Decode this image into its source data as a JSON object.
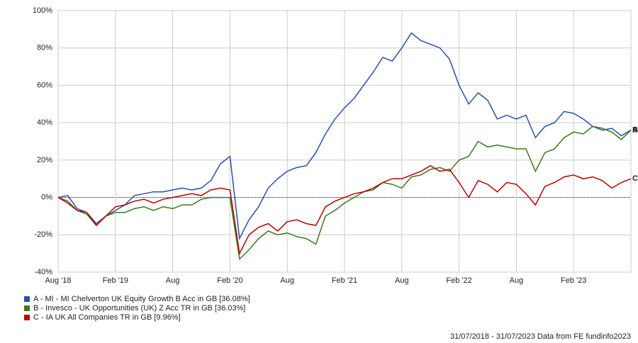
{
  "chart_data": {
    "type": "line",
    "x": [
      "2018-08",
      "2018-09",
      "2018-10",
      "2018-11",
      "2018-12",
      "2019-01",
      "2019-02",
      "2019-03",
      "2019-04",
      "2019-05",
      "2019-06",
      "2019-07",
      "2019-08",
      "2019-09",
      "2019-10",
      "2019-11",
      "2019-12",
      "2020-01",
      "2020-02",
      "2020-03",
      "2020-04",
      "2020-05",
      "2020-06",
      "2020-07",
      "2020-08",
      "2020-09",
      "2020-10",
      "2020-11",
      "2020-12",
      "2021-01",
      "2021-02",
      "2021-03",
      "2021-04",
      "2021-05",
      "2021-06",
      "2021-07",
      "2021-08",
      "2021-09",
      "2021-10",
      "2021-11",
      "2021-12",
      "2022-01",
      "2022-02",
      "2022-03",
      "2022-04",
      "2022-05",
      "2022-06",
      "2022-07",
      "2022-08",
      "2022-09",
      "2022-10",
      "2022-11",
      "2022-12",
      "2023-01",
      "2023-02",
      "2023-03",
      "2023-04",
      "2023-05",
      "2023-06",
      "2023-07",
      "2023-08"
    ],
    "series": [
      {
        "name": "A - MI - MI Chelverton UK Equity Growth B Acc in GB [36.08%]",
        "tag": "A",
        "color": "#2a50a8",
        "values": [
          0,
          1,
          -6,
          -8,
          -14,
          -10,
          -7,
          -4,
          1,
          2,
          3,
          3,
          4,
          5,
          4,
          5,
          9,
          18,
          22,
          -22,
          -12,
          -5,
          5,
          10,
          14,
          16,
          17,
          24,
          34,
          42,
          48,
          53,
          60,
          67,
          75,
          73,
          80,
          88,
          84,
          82,
          80,
          74,
          60,
          50,
          56,
          52,
          42,
          44,
          42,
          44,
          32,
          38,
          40,
          46,
          45,
          42,
          38,
          36,
          37,
          33,
          36.08
        ]
      },
      {
        "name": "B - Invesco - UK Opportunities (UK) Z Acc TR in GB [36.03%]",
        "tag": "B",
        "color": "#3a7a1e",
        "values": [
          0,
          -2,
          -7,
          -9,
          -15,
          -10,
          -8,
          -8,
          -6,
          -5,
          -7,
          -5,
          -6,
          -4,
          -4,
          -1,
          0,
          0,
          0,
          -33,
          -28,
          -22,
          -18,
          -20,
          -19,
          -21,
          -22,
          -25,
          -10,
          -7,
          -3,
          0,
          3,
          4,
          8,
          7,
          5,
          11,
          12,
          15,
          16,
          14,
          20,
          22,
          30,
          27,
          28,
          27,
          26,
          26,
          14,
          24,
          26,
          32,
          35,
          34,
          38,
          37,
          35,
          31,
          36.03
        ]
      },
      {
        "name": "C - IA UK All Companies TR in GB [9.96%]",
        "tag": "C",
        "color": "#c00000",
        "values": [
          0,
          -3,
          -7,
          -8,
          -15,
          -10,
          -5,
          -4,
          -2,
          -1,
          -3,
          -1,
          0,
          1,
          2,
          1,
          4,
          5,
          4,
          -30,
          -20,
          -16,
          -14,
          -18,
          -13,
          -12,
          -14,
          -15,
          -5,
          -2,
          0,
          2,
          3,
          5,
          8,
          10,
          10,
          12,
          14,
          17,
          14,
          15,
          8,
          0,
          9,
          7,
          3,
          8,
          7,
          2,
          -4,
          6,
          8,
          11,
          12,
          10,
          11,
          9,
          5,
          8,
          9.96
        ]
      }
    ],
    "xlim": [
      "2018-08",
      "2023-08"
    ],
    "xticks": [
      {
        "value": "2018-08",
        "label": "Aug '18"
      },
      {
        "value": "2019-02",
        "label": "Feb '19"
      },
      {
        "value": "2019-08",
        "label": "Aug"
      },
      {
        "value": "2020-02",
        "label": "Feb '20"
      },
      {
        "value": "2020-08",
        "label": "Aug"
      },
      {
        "value": "2021-02",
        "label": "Feb '21"
      },
      {
        "value": "2021-08",
        "label": "Aug"
      },
      {
        "value": "2022-02",
        "label": "Feb '22"
      },
      {
        "value": "2022-08",
        "label": "Aug"
      },
      {
        "value": "2023-02",
        "label": "Feb '23"
      }
    ],
    "ylim": [
      -40,
      100
    ],
    "yticks": [
      {
        "value": -40,
        "label": "-40%"
      },
      {
        "value": -20,
        "label": "-20%"
      },
      {
        "value": 0,
        "label": "0%"
      },
      {
        "value": 20,
        "label": "20%"
      },
      {
        "value": 40,
        "label": "40%"
      },
      {
        "value": 60,
        "label": "60%"
      },
      {
        "value": 80,
        "label": "80%"
      },
      {
        "value": 100,
        "label": "100%"
      }
    ],
    "grid": true,
    "footer": "31/07/2018 - 31/07/2023 Data from FE fundinfo2023"
  }
}
